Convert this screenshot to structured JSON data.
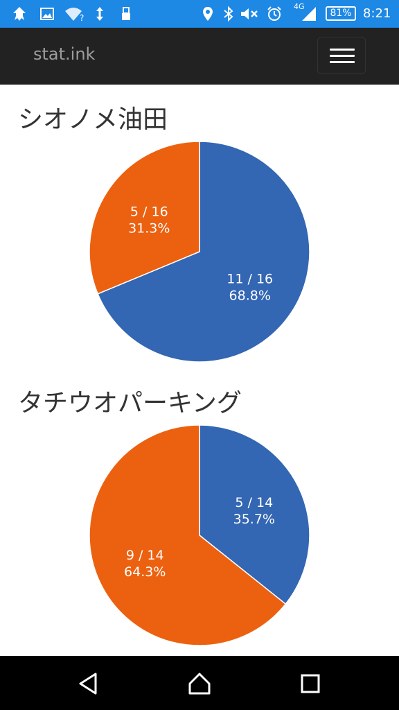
{
  "status_bar": {
    "network_label": "4G",
    "battery": "81%",
    "time": "8:21",
    "icons": [
      "squid-icon",
      "image-icon",
      "wifi-question-icon",
      "data-transfer-icon",
      "usb-icon",
      "location-icon",
      "bluetooth-icon",
      "mute-icon",
      "alarm-icon",
      "signal-icon",
      "battery-icon"
    ]
  },
  "navbar": {
    "brand": "stat.ink",
    "menu_icon": "hamburger-icon"
  },
  "colors": {
    "blue": "#3366b3",
    "orange": "#ec6110"
  },
  "stages": [
    {
      "name": "シオノメ油田",
      "chart_data": {
        "type": "pie",
        "slices": [
          {
            "value": 11,
            "total": 16,
            "label_fraction": "11 / 16",
            "label_percent": "68.8%",
            "color": "#3366b3"
          },
          {
            "value": 5,
            "total": 16,
            "label_fraction": "5 / 16",
            "label_percent": "31.3%",
            "color": "#ec6110"
          }
        ]
      }
    },
    {
      "name": "タチウオパーキング",
      "chart_data": {
        "type": "pie",
        "slices": [
          {
            "value": 5,
            "total": 14,
            "label_fraction": "5 / 14",
            "label_percent": "35.7%",
            "color": "#3366b3"
          },
          {
            "value": 9,
            "total": 14,
            "label_fraction": "9 / 14",
            "label_percent": "64.3%",
            "color": "#ec6110"
          }
        ]
      }
    }
  ],
  "system_nav": {
    "icons": [
      "back-icon",
      "home-icon",
      "recents-icon"
    ]
  }
}
